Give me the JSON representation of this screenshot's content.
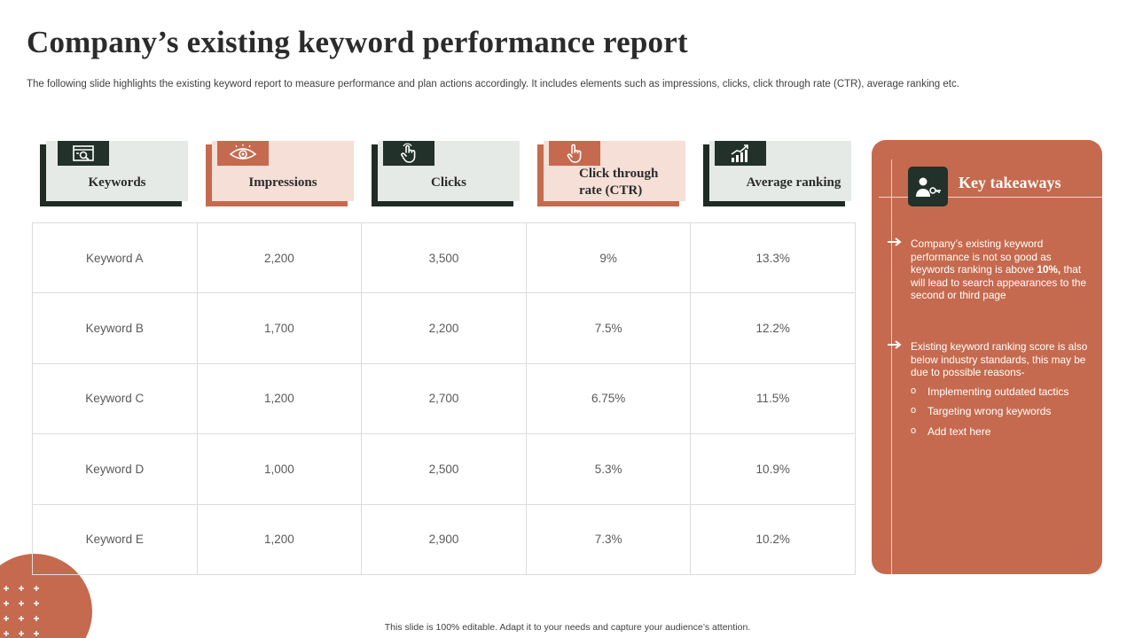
{
  "title": "Company’s existing keyword performance report",
  "subtitle": "The following slide highlights the existing keyword report to measure performance and plan actions accordingly. It includes elements such as impressions, clicks, click through rate (CTR), average ranking etc.",
  "headers": [
    {
      "label": "Keywords",
      "icon": "search-icon",
      "style": "dark"
    },
    {
      "label": "Impressions",
      "icon": "eye-icon",
      "style": "rust"
    },
    {
      "label": "Clicks",
      "icon": "hand-pointer-icon",
      "style": "dark"
    },
    {
      "label": "Click through rate (CTR)",
      "icon": "touch-icon",
      "style": "rust"
    },
    {
      "label": "Average ranking",
      "icon": "bar-chart-icon",
      "style": "dark"
    }
  ],
  "rows": [
    [
      "Keyword A",
      "2,200",
      "3,500",
      "9%",
      "13.3%"
    ],
    [
      "Keyword B",
      "1,700",
      "2,200",
      "7.5%",
      "12.2%"
    ],
    [
      "Keyword C",
      "1,200",
      "2,700",
      "6.75%",
      "11.5%"
    ],
    [
      "Keyword D",
      "1,000",
      "2,500",
      "5.3%",
      "10.9%"
    ],
    [
      "Keyword E",
      "1,200",
      "2,900",
      "7.3%",
      "10.2%"
    ]
  ],
  "takeaways": {
    "title": "Key takeaways",
    "icon": "person-key-icon",
    "point1_pre": "Company’s existing keyword performance is not so good as keywords ranking is above ",
    "point1_bold": "10%,",
    "point1_post": " that will lead to search appearances to the second or third page",
    "point2": "Existing keyword ranking score is also below industry standards, this may be due to possible reasons-",
    "reasons": [
      "Implementing outdated tactics",
      "Targeting wrong keywords",
      "Add text here"
    ]
  },
  "footer": "This slide is 100% editable. Adapt it to your needs and capture your audience’s attention.",
  "colors": {
    "accent": "#c56a4e",
    "dark": "#22312a",
    "light_rust": "#f5dfd7",
    "light_gray": "#e6eae6"
  }
}
